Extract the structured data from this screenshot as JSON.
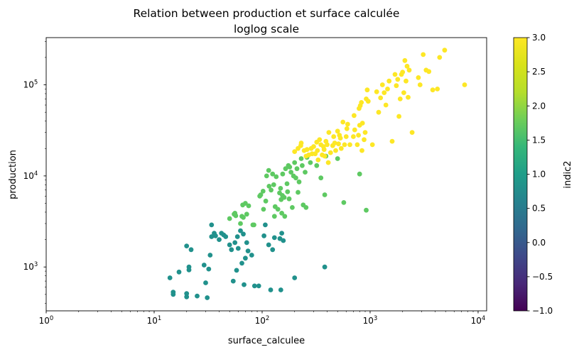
{
  "chart_data": {
    "type": "scatter",
    "title": "Relation between production et surface calculée",
    "subtitle": "loglog scale",
    "xlabel": "surface_calculee",
    "ylabel": "production",
    "xscale": "log",
    "yscale": "log",
    "xlim": [
      1,
      12000
    ],
    "ylim": [
      330,
      330000
    ],
    "x_ticks": [
      {
        "v": 1,
        "base": "10",
        "exp": "0"
      },
      {
        "v": 10,
        "base": "10",
        "exp": "1"
      },
      {
        "v": 100,
        "base": "10",
        "exp": "2"
      },
      {
        "v": 1000,
        "base": "10",
        "exp": "3"
      },
      {
        "v": 10000,
        "base": "10",
        "exp": "4"
      }
    ],
    "y_ticks": [
      {
        "v": 1000,
        "base": "10",
        "exp": "3"
      },
      {
        "v": 10000,
        "base": "10",
        "exp": "4"
      },
      {
        "v": 100000,
        "base": "10",
        "exp": "5"
      }
    ],
    "colorbar": {
      "label": "indic2",
      "range": [
        -1.0,
        3.0
      ],
      "ticks": [
        "-1.0",
        "-0.5",
        "0.0",
        "0.5",
        "1.0",
        "1.5",
        "2.0",
        "2.5",
        "3.0"
      ],
      "colormap": "viridis"
    },
    "colors": {
      "1": "#21918c",
      "2": "#5ec962",
      "3": "#fde725"
    },
    "grid": false,
    "series": [
      {
        "color_value": 1,
        "points": [
          [
            14,
            760
          ],
          [
            15,
            500
          ],
          [
            15,
            530
          ],
          [
            17,
            880
          ],
          [
            20,
            1700
          ],
          [
            20,
            470
          ],
          [
            20,
            510
          ],
          [
            21,
            930
          ],
          [
            21,
            1000
          ],
          [
            22,
            1550
          ],
          [
            25,
            480
          ],
          [
            29,
            1050
          ],
          [
            30,
            670
          ],
          [
            31,
            460
          ],
          [
            32,
            950
          ],
          [
            33,
            1350
          ],
          [
            34,
            2150
          ],
          [
            34,
            2900
          ],
          [
            36,
            2350
          ],
          [
            37,
            2200
          ],
          [
            40,
            2000
          ],
          [
            42,
            2350
          ],
          [
            44,
            2250
          ],
          [
            46,
            2150
          ],
          [
            50,
            1750
          ],
          [
            52,
            1550
          ],
          [
            54,
            700
          ],
          [
            56,
            1850
          ],
          [
            58,
            920
          ],
          [
            59,
            2150
          ],
          [
            60,
            1600
          ],
          [
            63,
            2500
          ],
          [
            65,
            1100
          ],
          [
            67,
            2300
          ],
          [
            68,
            640
          ],
          [
            70,
            1250
          ],
          [
            72,
            1850
          ],
          [
            74,
            1500
          ],
          [
            80,
            1350
          ],
          [
            85,
            620
          ],
          [
            93,
            620
          ],
          [
            104,
            2200
          ],
          [
            107,
            2900
          ],
          [
            115,
            1750
          ],
          [
            120,
            560
          ],
          [
            125,
            1550
          ],
          [
            130,
            2100
          ],
          [
            146,
            2050
          ],
          [
            149,
            560
          ],
          [
            152,
            2350
          ],
          [
            157,
            1950
          ],
          [
            200,
            760
          ],
          [
            380,
            1000
          ]
        ]
      },
      {
        "color_value": 2,
        "points": [
          [
            50,
            3400
          ],
          [
            55,
            3800
          ],
          [
            56,
            3900
          ],
          [
            57,
            3650
          ],
          [
            63,
            3000
          ],
          [
            65,
            3600
          ],
          [
            66,
            4800
          ],
          [
            67,
            3500
          ],
          [
            70,
            5000
          ],
          [
            72,
            3800
          ],
          [
            75,
            4700
          ],
          [
            82,
            2900
          ],
          [
            84,
            2900
          ],
          [
            95,
            6000
          ],
          [
            97,
            6200
          ],
          [
            102,
            6800
          ],
          [
            103,
            4300
          ],
          [
            108,
            5300
          ],
          [
            110,
            10000
          ],
          [
            115,
            11500
          ],
          [
            116,
            7700
          ],
          [
            121,
            7000
          ],
          [
            125,
            10500
          ],
          [
            128,
            8000
          ],
          [
            130,
            3600
          ],
          [
            132,
            4600
          ],
          [
            135,
            9800
          ],
          [
            140,
            4300
          ],
          [
            145,
            6500
          ],
          [
            148,
            7300
          ],
          [
            150,
            5500
          ],
          [
            152,
            3900
          ],
          [
            154,
            6100
          ],
          [
            155,
            10500
          ],
          [
            160,
            5800
          ],
          [
            162,
            3600
          ],
          [
            165,
            12000
          ],
          [
            170,
            8200
          ],
          [
            172,
            6700
          ],
          [
            175,
            13000
          ],
          [
            178,
            5600
          ],
          [
            180,
            12500
          ],
          [
            185,
            11000
          ],
          [
            190,
            4500
          ],
          [
            195,
            10000
          ],
          [
            200,
            14000
          ],
          [
            205,
            9500
          ],
          [
            210,
            12000
          ],
          [
            215,
            6600
          ],
          [
            220,
            8600
          ],
          [
            230,
            15500
          ],
          [
            235,
            13000
          ],
          [
            240,
            4800
          ],
          [
            250,
            11000
          ],
          [
            255,
            4500
          ],
          [
            260,
            16000
          ],
          [
            280,
            14000
          ],
          [
            320,
            13000
          ],
          [
            350,
            9500
          ],
          [
            380,
            6200
          ],
          [
            390,
            16500
          ],
          [
            500,
            15500
          ],
          [
            570,
            5100
          ],
          [
            800,
            10500
          ],
          [
            920,
            4200
          ]
        ]
      },
      {
        "color_value": 3,
        "points": [
          [
            200,
            18500
          ],
          [
            215,
            20000
          ],
          [
            228,
            21500
          ],
          [
            230,
            23000
          ],
          [
            245,
            19000
          ],
          [
            255,
            16500
          ],
          [
            260,
            19500
          ],
          [
            270,
            17000
          ],
          [
            285,
            20000
          ],
          [
            290,
            17500
          ],
          [
            300,
            21000
          ],
          [
            310,
            17500
          ],
          [
            320,
            23500
          ],
          [
            325,
            19000
          ],
          [
            330,
            15000
          ],
          [
            340,
            25000
          ],
          [
            350,
            22000
          ],
          [
            360,
            17000
          ],
          [
            370,
            21000
          ],
          [
            375,
            19500
          ],
          [
            380,
            16500
          ],
          [
            390,
            24000
          ],
          [
            400,
            22000
          ],
          [
            410,
            14000
          ],
          [
            415,
            30000
          ],
          [
            430,
            18000
          ],
          [
            450,
            21500
          ],
          [
            460,
            27000
          ],
          [
            470,
            23000
          ],
          [
            480,
            19000
          ],
          [
            500,
            31000
          ],
          [
            510,
            22500
          ],
          [
            520,
            28000
          ],
          [
            530,
            26000
          ],
          [
            540,
            20000
          ],
          [
            560,
            39000
          ],
          [
            580,
            22000
          ],
          [
            600,
            27000
          ],
          [
            610,
            33000
          ],
          [
            620,
            37000
          ],
          [
            650,
            22000
          ],
          [
            700,
            27000
          ],
          [
            710,
            46000
          ],
          [
            720,
            32000
          ],
          [
            760,
            22000
          ],
          [
            780,
            28000
          ],
          [
            790,
            55000
          ],
          [
            800,
            36000
          ],
          [
            810,
            59000
          ],
          [
            830,
            64000
          ],
          [
            840,
            19000
          ],
          [
            850,
            38000
          ],
          [
            880,
            25000
          ],
          [
            900,
            30000
          ],
          [
            920,
            70000
          ],
          [
            940,
            88000
          ],
          [
            960,
            66000
          ],
          [
            1050,
            22000
          ],
          [
            1150,
            84000
          ],
          [
            1200,
            50000
          ],
          [
            1250,
            72000
          ],
          [
            1300,
            100000
          ],
          [
            1350,
            82000
          ],
          [
            1400,
            60000
          ],
          [
            1450,
            90000
          ],
          [
            1500,
            110000
          ],
          [
            1600,
            24000
          ],
          [
            1700,
            130000
          ],
          [
            1750,
            98000
          ],
          [
            1800,
            115000
          ],
          [
            1850,
            45000
          ],
          [
            1900,
            70000
          ],
          [
            1950,
            130000
          ],
          [
            2000,
            138000
          ],
          [
            2050,
            82000
          ],
          [
            2100,
            185000
          ],
          [
            2150,
            110000
          ],
          [
            2200,
            160000
          ],
          [
            2250,
            73000
          ],
          [
            2300,
            145000
          ],
          [
            2450,
            30000
          ],
          [
            2800,
            120000
          ],
          [
            2900,
            100000
          ],
          [
            3100,
            215000
          ],
          [
            3300,
            145000
          ],
          [
            3500,
            140000
          ],
          [
            3800,
            88000
          ],
          [
            4200,
            90000
          ],
          [
            4400,
            200000
          ],
          [
            4900,
            240000
          ],
          [
            7500,
            100000
          ]
        ]
      }
    ]
  }
}
